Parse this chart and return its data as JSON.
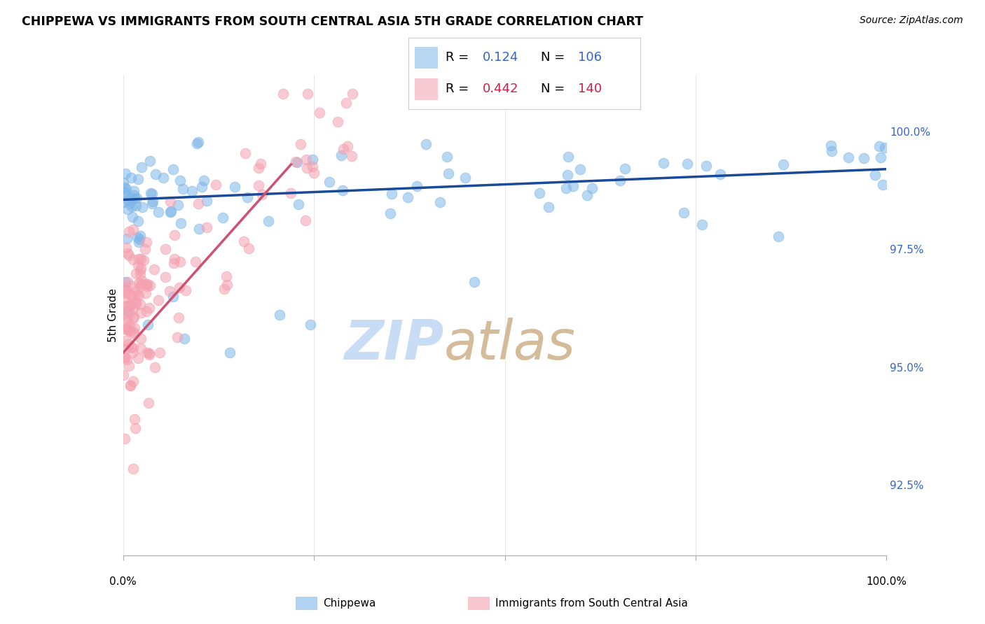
{
  "title": "CHIPPEWA VS IMMIGRANTS FROM SOUTH CENTRAL ASIA 5TH GRADE CORRELATION CHART",
  "source": "Source: ZipAtlas.com",
  "ylabel": "5th Grade",
  "y_ticks": [
    92.5,
    95.0,
    97.5,
    100.0
  ],
  "y_tick_labels": [
    "92.5%",
    "95.0%",
    "97.5%",
    "100.0%"
  ],
  "x_range": [
    0.0,
    100.0
  ],
  "y_range": [
    91.0,
    101.2
  ],
  "legend_blue_r": "0.124",
  "legend_blue_n": "106",
  "legend_pink_r": "0.442",
  "legend_pink_n": "140",
  "blue_line_x": [
    0.0,
    100.0
  ],
  "blue_line_y": [
    98.55,
    99.2
  ],
  "pink_line_x": [
    0.0,
    22.0
  ],
  "pink_line_y": [
    95.3,
    99.3
  ],
  "blue_color": "#7eb6e8",
  "pink_color": "#f4a0b0",
  "blue_line_color": "#1a4a99",
  "pink_line_color": "#d05070",
  "watermark_zip_color": "#c8d8f0",
  "watermark_atlas_color": "#d0b090",
  "background_color": "#ffffff",
  "grid_color": "#dddddd"
}
